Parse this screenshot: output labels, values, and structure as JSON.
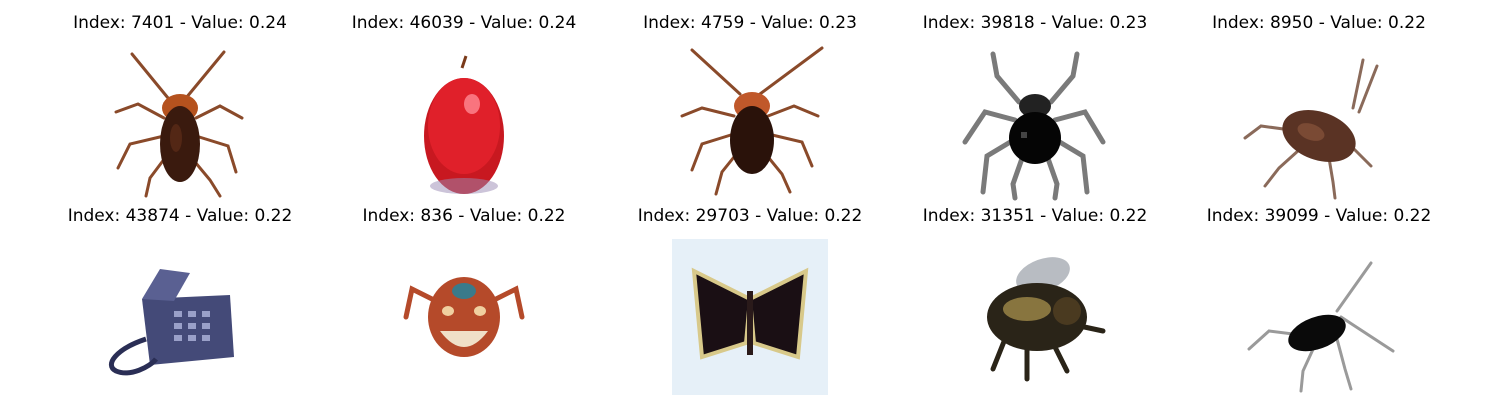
{
  "cells": [
    {
      "title": "Index: 7401 - Value: 0.24",
      "subject": "cockroach",
      "colors": {
        "body": "#3a1a0e",
        "accent": "#b5521e",
        "legs": "#8a4a2a"
      }
    },
    {
      "title": "Index: 46039 - Value: 0.24",
      "subject": "red apple",
      "colors": {
        "body": "#e0202a",
        "accent": "#ff6f7a",
        "stem": "#7a3a1a"
      }
    },
    {
      "title": "Index: 4759 - Value: 0.23",
      "subject": "cockroach",
      "colors": {
        "body": "#2a120a",
        "accent": "#c0582a",
        "legs": "#8a4a2a"
      }
    },
    {
      "title": "Index: 39818 - Value: 0.23",
      "subject": "black spider",
      "colors": {
        "body": "#050505",
        "legs": "#7a7a7a"
      }
    },
    {
      "title": "Index: 8950 - Value: 0.22",
      "subject": "brown cockroach",
      "colors": {
        "body": "#5a3324",
        "legs": "#8a6a5a"
      }
    },
    {
      "title": "Index: 43874 - Value: 0.22",
      "subject": "desk telephone",
      "colors": {
        "body": "#444a78",
        "cord": "#2a2e55"
      }
    },
    {
      "title": "Index: 836 - Value: 0.22",
      "subject": "crab mask",
      "colors": {
        "body": "#b54a2a",
        "accent": "#3a7a8a"
      }
    },
    {
      "title": "Index: 29703 - Value: 0.22",
      "subject": "dark butterfly",
      "colors": {
        "body": "#1a0f14",
        "edge": "#d8c98a",
        "bg": "#e6f0f8"
      }
    },
    {
      "title": "Index: 31351 - Value: 0.22",
      "subject": "bumblebee",
      "colors": {
        "body": "#2a2418",
        "accent": "#a08a4a",
        "wings": "#9aa0a8"
      }
    },
    {
      "title": "Index: 39099 - Value: 0.22",
      "subject": "black cricket",
      "colors": {
        "body": "#0a0a0a",
        "legs": "#9a9a9a"
      }
    }
  ]
}
